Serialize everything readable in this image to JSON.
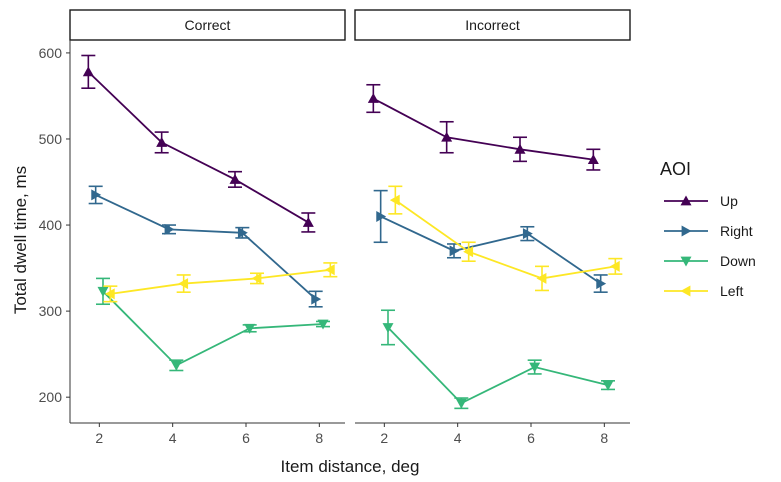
{
  "chart_data": {
    "type": "line",
    "title": "",
    "xlabel": "Item distance, deg",
    "ylabel": "Total dwell time, ms",
    "xlim": [
      1.2,
      8.7
    ],
    "ylim": [
      170,
      615
    ],
    "xticks": [
      2,
      4,
      6,
      8
    ],
    "yticks": [
      200,
      300,
      400,
      500,
      600
    ],
    "x_tick_labels": [
      "2",
      "4",
      "6",
      "8"
    ],
    "y_tick_labels": [
      "200",
      "300",
      "400",
      "500",
      "600"
    ],
    "grid": false,
    "legend": {
      "title": "AOI",
      "position": "right",
      "entries": [
        {
          "name": "Up",
          "marker": "triangle-up",
          "color": "#440154"
        },
        {
          "name": "Right",
          "marker": "triangle-right",
          "color": "#31688E"
        },
        {
          "name": "Down",
          "marker": "triangle-down",
          "color": "#35B779"
        },
        {
          "name": "Left",
          "marker": "triangle-left",
          "color": "#FDE725"
        }
      ]
    },
    "panels": [
      {
        "label": "Correct",
        "series": [
          {
            "name": "Up",
            "x": [
              1.7,
              3.7,
              5.7,
              7.7
            ],
            "y": [
              578,
              496,
              453,
              403
            ],
            "err": [
              19,
              12,
              9,
              11
            ]
          },
          {
            "name": "Right",
            "x": [
              1.9,
              3.9,
              5.9,
              7.9
            ],
            "y": [
              435,
              395,
              391,
              314
            ],
            "err": [
              10,
              5,
              6,
              9
            ]
          },
          {
            "name": "Down",
            "x": [
              2.1,
              4.1,
              6.1,
              8.1
            ],
            "y": [
              323,
              237,
              280,
              285
            ],
            "err": [
              15,
              6,
              4,
              3
            ]
          },
          {
            "name": "Left",
            "x": [
              2.3,
              4.3,
              6.3,
              8.3
            ],
            "y": [
              320,
              332,
              338,
              348
            ],
            "err": [
              9,
              10,
              6,
              8
            ]
          }
        ]
      },
      {
        "label": "Incorrect",
        "series": [
          {
            "name": "Up",
            "x": [
              1.7,
              3.7,
              5.7,
              7.7
            ],
            "y": [
              547,
              502,
              488,
              476
            ],
            "err": [
              16,
              18,
              14,
              12
            ]
          },
          {
            "name": "Right",
            "x": [
              1.9,
              3.9,
              5.9,
              7.9
            ],
            "y": [
              410,
              370,
              390,
              332
            ],
            "err": [
              30,
              8,
              8,
              10
            ]
          },
          {
            "name": "Down",
            "x": [
              2.1,
              4.1,
              6.1,
              8.1
            ],
            "y": [
              281,
              193,
              235,
              214
            ],
            "err": [
              20,
              6,
              8,
              5
            ]
          },
          {
            "name": "Left",
            "x": [
              2.3,
              4.3,
              6.3,
              8.3
            ],
            "y": [
              429,
              369,
              338,
              352
            ],
            "err": [
              16,
              11,
              14,
              9
            ]
          }
        ]
      }
    ]
  }
}
